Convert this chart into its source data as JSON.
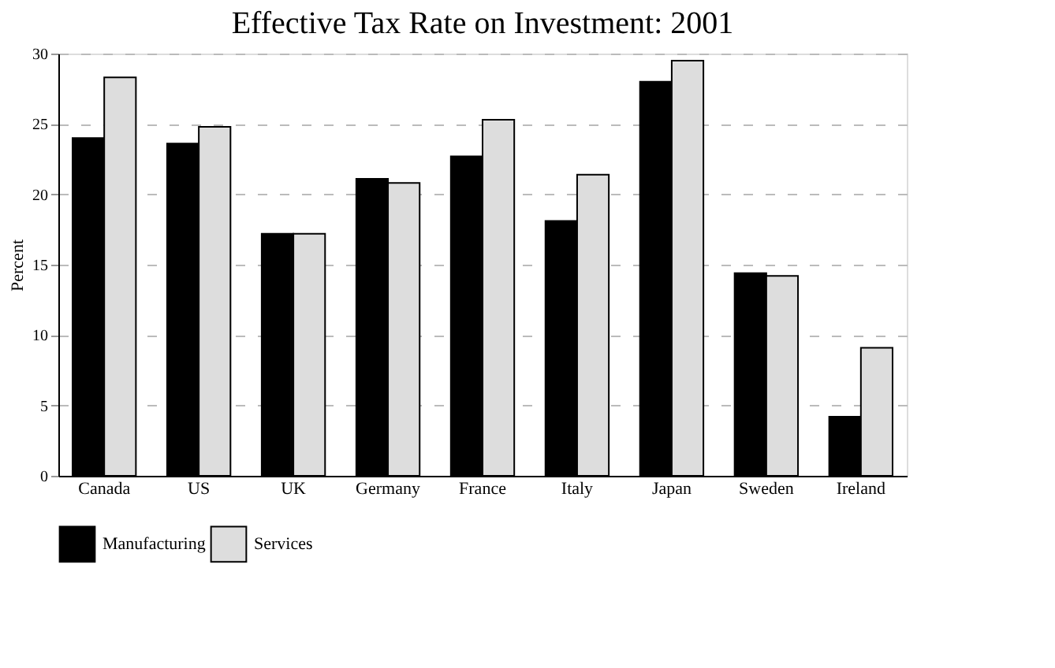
{
  "chart_data": {
    "type": "bar",
    "title": "Effective Tax Rate on Investment: 2001",
    "ylabel": "Percent",
    "categories": [
      "Canada",
      "US",
      "UK",
      "Germany",
      "France",
      "Italy",
      "Japan",
      "Sweden",
      "Ireland"
    ],
    "series": [
      {
        "name": "Manufacturing",
        "color": "#000000",
        "values": [
          24.0,
          23.6,
          17.2,
          21.1,
          22.7,
          18.1,
          28.0,
          14.4,
          4.2
        ]
      },
      {
        "name": "Services",
        "color": "#dddddd",
        "values": [
          28.3,
          24.8,
          17.2,
          20.8,
          25.3,
          21.4,
          29.5,
          14.2,
          9.1
        ]
      }
    ],
    "ylim": [
      0,
      30
    ],
    "yticks": [
      0,
      5,
      10,
      15,
      20,
      25,
      30
    ],
    "grid": "y",
    "legend": "bottom"
  }
}
